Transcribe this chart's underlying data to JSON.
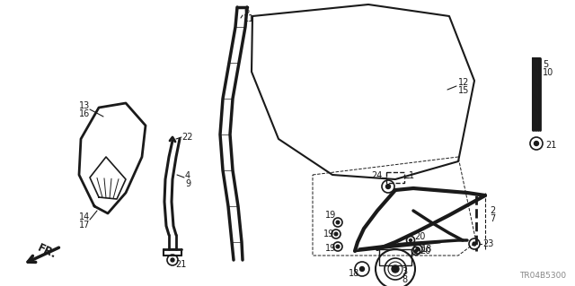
{
  "bg_color": "#ffffff",
  "line_color": "#1a1a1a",
  "text_color": "#1a1a1a",
  "fig_width": 6.4,
  "fig_height": 3.19,
  "dpi": 100,
  "watermark": "TR04B5300"
}
